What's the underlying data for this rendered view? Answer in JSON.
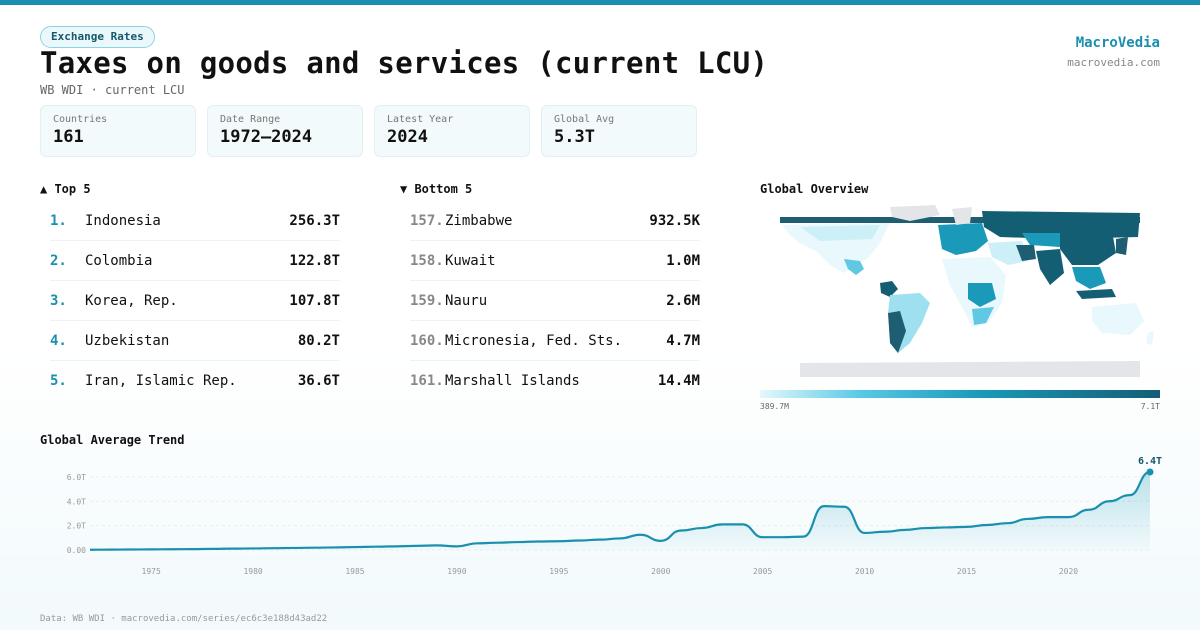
{
  "header": {
    "tag": "Exchange Rates",
    "title": "Taxes on goods and services (current LCU)",
    "subtitle": "WB WDI · current LCU",
    "brand_name": "MacroVedia",
    "brand_url": "macrovedia.com"
  },
  "stats": [
    {
      "label": "Countries",
      "value": "161"
    },
    {
      "label": "Date Range",
      "value": "1972–2024"
    },
    {
      "label": "Latest Year",
      "value": "2024"
    },
    {
      "label": "Global Avg",
      "value": "5.3T"
    }
  ],
  "top5": {
    "heading": "▲ Top 5",
    "rows": [
      {
        "rank": "1.",
        "name": "Indonesia",
        "value": "256.3T"
      },
      {
        "rank": "2.",
        "name": "Colombia",
        "value": "122.8T"
      },
      {
        "rank": "3.",
        "name": "Korea, Rep.",
        "value": "107.8T"
      },
      {
        "rank": "4.",
        "name": "Uzbekistan",
        "value": "80.2T"
      },
      {
        "rank": "5.",
        "name": "Iran, Islamic Rep.",
        "value": "36.6T"
      }
    ]
  },
  "bottom5": {
    "heading": "▼ Bottom 5",
    "rows": [
      {
        "rank": "157.",
        "name": "Zimbabwe",
        "value": "932.5K"
      },
      {
        "rank": "158.",
        "name": "Kuwait",
        "value": "1.0M"
      },
      {
        "rank": "159.",
        "name": "Nauru",
        "value": "2.6M"
      },
      {
        "rank": "160.",
        "name": "Micronesia, Fed. Sts.",
        "value": "4.7M"
      },
      {
        "rank": "161.",
        "name": "Marshall Islands",
        "value": "14.4M"
      }
    ]
  },
  "map": {
    "heading": "Global Overview",
    "legend_min": "389.7M",
    "legend_max": "7.1T",
    "colors": {
      "low": "#e6f8fc",
      "mid": "#1a9ab8",
      "high": "#145e74",
      "nodata": "#e3e5e8"
    }
  },
  "trend": {
    "heading": "Global Average Trend",
    "end_label": "6.4T",
    "line_color": "#1a8fae"
  },
  "footer": "Data: WB WDI · macrovedia.com/series/ec6c3e188d43ad22",
  "chart_data": {
    "type": "area",
    "title": "Global Average Trend",
    "x": [
      1972,
      1973,
      1974,
      1975,
      1976,
      1977,
      1978,
      1979,
      1980,
      1981,
      1982,
      1983,
      1984,
      1985,
      1986,
      1987,
      1988,
      1989,
      1990,
      1991,
      1992,
      1993,
      1994,
      1995,
      1996,
      1997,
      1998,
      1999,
      2000,
      2001,
      2002,
      2003,
      2004,
      2005,
      2006,
      2007,
      2008,
      2009,
      2010,
      2011,
      2012,
      2013,
      2014,
      2015,
      2016,
      2017,
      2018,
      2019,
      2020,
      2021,
      2022,
      2023,
      2024
    ],
    "series": [
      {
        "values": [
          0.02,
          0.03,
          0.04,
          0.05,
          0.06,
          0.07,
          0.09,
          0.11,
          0.13,
          0.15,
          0.17,
          0.19,
          0.21,
          0.24,
          0.27,
          0.3,
          0.34,
          0.38,
          0.3,
          0.55,
          0.6,
          0.65,
          0.7,
          0.72,
          0.78,
          0.85,
          0.95,
          1.25,
          0.75,
          1.6,
          1.8,
          2.1,
          2.1,
          1.05,
          1.05,
          1.1,
          3.6,
          3.55,
          1.4,
          1.5,
          1.65,
          1.8,
          1.85,
          1.9,
          2.05,
          2.2,
          2.55,
          2.7,
          2.7,
          3.3,
          4.0,
          4.5,
          6.4
        ]
      }
    ],
    "xticks": [
      1975,
      1980,
      1985,
      1990,
      1995,
      2000,
      2005,
      2010,
      2015,
      2020
    ],
    "yticks": [
      "0.00",
      "2.0T",
      "4.0T",
      "6.0T"
    ],
    "ylim": [
      0,
      6.4
    ],
    "grid": true
  }
}
